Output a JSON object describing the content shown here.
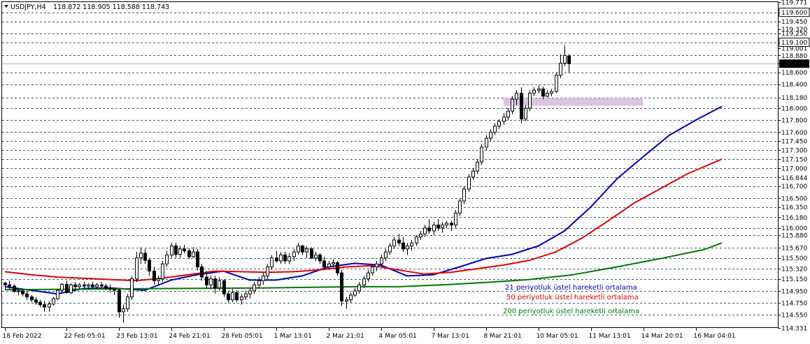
{
  "header": {
    "symbol": "USDJPY,H4",
    "ohlc": "118.872 118.905 118.588 118.743",
    "menu_icon": "triangle-down-icon"
  },
  "chart_data": {
    "type": "candlestick",
    "symbol": "USDJPY",
    "timeframe": "H4",
    "ylim": [
      114.331,
      119.771
    ],
    "y_ticks": [
      "119.771",
      "119.600",
      "119.450",
      "119.320",
      "119.250",
      "119.100",
      "119.001",
      "118.880",
      "118.743",
      "118.600",
      "118.400",
      "118.180",
      "118.000",
      "117.800",
      "117.600",
      "117.450",
      "117.300",
      "117.150",
      "117.000",
      "116.844",
      "116.700",
      "116.500",
      "116.350",
      "116.180",
      "116.000",
      "115.880",
      "115.670",
      "115.500",
      "115.320",
      "115.150",
      "114.950",
      "114.750",
      "114.550",
      "114.331"
    ],
    "y_ticks_boxed": [
      "119.600",
      "119.100"
    ],
    "gridlines": [
      119.6,
      119.45,
      119.25,
      119.1,
      118.88,
      118.6,
      118.4,
      118.18,
      118.0,
      117.8,
      117.6,
      117.45,
      117.3,
      117.15,
      117.0,
      116.844,
      116.7,
      116.5,
      116.35,
      116.18,
      116.0,
      115.88,
      115.67,
      115.5,
      115.32,
      115.15,
      114.95,
      114.75,
      114.55
    ],
    "x_labels": [
      {
        "i": 0,
        "label": "18 Feb 2022"
      },
      {
        "i": 14,
        "label": "22 Feb 05:01"
      },
      {
        "i": 26,
        "label": "23 Feb 13:01"
      },
      {
        "i": 38,
        "label": "24 Feb 21:01"
      },
      {
        "i": 50,
        "label": "28 Feb 05:01"
      },
      {
        "i": 62,
        "label": "1 Mar 13:01"
      },
      {
        "i": 74,
        "label": "2 Mar 21:01"
      },
      {
        "i": 86,
        "label": "4 Mar 05:01"
      },
      {
        "i": 98,
        "label": "7 Mar 13:01"
      },
      {
        "i": 110,
        "label": "8 Mar 21:01"
      },
      {
        "i": 122,
        "label": "10 Mar 05:01"
      },
      {
        "i": 134,
        "label": "11 Mar 13:01"
      },
      {
        "i": 146,
        "label": "14 Mar 20:01"
      },
      {
        "i": 158,
        "label": "16 Mar 04:01"
      }
    ],
    "current_price": 118.743,
    "series": [
      {
        "name": "21 periyotluk üstel hareketli ortalama",
        "color": "#0000b4",
        "points": [
          [
            0,
            115.02
          ],
          [
            6,
            114.96
          ],
          [
            12,
            114.9
          ],
          [
            18,
            114.99
          ],
          [
            24,
            115.0
          ],
          [
            32,
            114.96
          ],
          [
            38,
            115.13
          ],
          [
            44,
            115.22
          ],
          [
            50,
            115.28
          ],
          [
            56,
            115.13
          ],
          [
            62,
            115.13
          ],
          [
            68,
            115.2
          ],
          [
            74,
            115.35
          ],
          [
            80,
            115.41
          ],
          [
            86,
            115.38
          ],
          [
            92,
            115.2
          ],
          [
            98,
            115.22
          ],
          [
            104,
            115.35
          ],
          [
            110,
            115.49
          ],
          [
            116,
            115.56
          ],
          [
            122,
            115.7
          ],
          [
            128,
            115.95
          ],
          [
            134,
            116.35
          ],
          [
            140,
            116.82
          ],
          [
            146,
            117.19
          ],
          [
            152,
            117.55
          ],
          [
            158,
            117.8
          ],
          [
            164,
            118.03
          ]
        ]
      },
      {
        "name": "50 periyotluk üstel hareketli ortalama",
        "color": "#e00000",
        "points": [
          [
            0,
            115.27
          ],
          [
            6,
            115.22
          ],
          [
            12,
            115.18
          ],
          [
            18,
            115.16
          ],
          [
            24,
            115.14
          ],
          [
            30,
            115.12
          ],
          [
            36,
            115.16
          ],
          [
            42,
            115.22
          ],
          [
            48,
            115.28
          ],
          [
            54,
            115.27
          ],
          [
            60,
            115.26
          ],
          [
            66,
            115.27
          ],
          [
            72,
            115.3
          ],
          [
            78,
            115.35
          ],
          [
            84,
            115.37
          ],
          [
            90,
            115.3
          ],
          [
            96,
            115.23
          ],
          [
            102,
            115.26
          ],
          [
            108,
            115.32
          ],
          [
            114,
            115.38
          ],
          [
            120,
            115.46
          ],
          [
            126,
            115.6
          ],
          [
            132,
            115.83
          ],
          [
            138,
            116.12
          ],
          [
            144,
            116.42
          ],
          [
            150,
            116.66
          ],
          [
            156,
            116.9
          ],
          [
            164,
            117.15
          ]
        ]
      },
      {
        "name": "200 periyotluk üstel hareketli ortalama",
        "color": "#007800",
        "points": [
          [
            0,
            114.97
          ],
          [
            20,
            114.98
          ],
          [
            40,
            114.99
          ],
          [
            60,
            115.0
          ],
          [
            80,
            115.02
          ],
          [
            90,
            115.02
          ],
          [
            100,
            115.05
          ],
          [
            110,
            115.09
          ],
          [
            120,
            115.14
          ],
          [
            130,
            115.22
          ],
          [
            140,
            115.35
          ],
          [
            150,
            115.49
          ],
          [
            160,
            115.64
          ],
          [
            164,
            115.75
          ]
        ]
      }
    ],
    "candles": [
      [
        0,
        115.08,
        115.1,
        114.97,
        115.05
      ],
      [
        1,
        115.05,
        115.12,
        114.97,
        115.03
      ],
      [
        2,
        115.03,
        115.06,
        114.92,
        114.94
      ],
      [
        3,
        114.94,
        114.98,
        114.88,
        114.95
      ],
      [
        4,
        114.95,
        114.98,
        114.86,
        114.9
      ],
      [
        5,
        114.9,
        114.95,
        114.8,
        114.85
      ],
      [
        6,
        114.85,
        114.88,
        114.76,
        114.8
      ],
      [
        7,
        114.8,
        114.85,
        114.72,
        114.76
      ],
      [
        8,
        114.76,
        114.8,
        114.68,
        114.72
      ],
      [
        9,
        114.72,
        114.78,
        114.6,
        114.68
      ],
      [
        10,
        114.68,
        114.78,
        114.6,
        114.73
      ],
      [
        11,
        114.73,
        114.85,
        114.7,
        114.82
      ],
      [
        12,
        114.82,
        114.98,
        114.8,
        114.96
      ],
      [
        13,
        114.96,
        115.08,
        114.92,
        115.06
      ],
      [
        14,
        115.06,
        115.12,
        114.9,
        114.92
      ],
      [
        15,
        114.92,
        115.08,
        114.9,
        115.05
      ],
      [
        16,
        115.05,
        115.1,
        114.98,
        115.02
      ],
      [
        17,
        115.02,
        115.08,
        114.98,
        115.05
      ],
      [
        18,
        115.05,
        115.1,
        114.99,
        115.03
      ],
      [
        19,
        115.03,
        115.08,
        114.98,
        115.05
      ],
      [
        20,
        115.05,
        115.1,
        114.99,
        115.02
      ],
      [
        21,
        115.02,
        115.08,
        114.98,
        115.05
      ],
      [
        22,
        115.05,
        115.1,
        115.0,
        115.03
      ],
      [
        23,
        115.03,
        115.07,
        114.96,
        115.0
      ],
      [
        24,
        115.0,
        115.06,
        114.92,
        114.98
      ],
      [
        25,
        114.98,
        115.0,
        114.88,
        114.96
      ],
      [
        26,
        114.96,
        114.98,
        114.5,
        114.6
      ],
      [
        27,
        114.6,
        114.72,
        114.42,
        114.65
      ],
      [
        28,
        114.65,
        114.9,
        114.6,
        114.85
      ],
      [
        29,
        114.85,
        115.2,
        114.8,
        115.15
      ],
      [
        30,
        115.15,
        115.6,
        115.1,
        115.5
      ],
      [
        31,
        115.5,
        115.68,
        115.4,
        115.58
      ],
      [
        32,
        115.58,
        115.65,
        115.4,
        115.46
      ],
      [
        33,
        115.46,
        115.5,
        115.2,
        115.28
      ],
      [
        34,
        115.28,
        115.35,
        115.05,
        115.12
      ],
      [
        35,
        115.12,
        115.2,
        115.05,
        115.15
      ],
      [
        36,
        115.15,
        115.45,
        115.1,
        115.4
      ],
      [
        37,
        115.4,
        115.62,
        115.35,
        115.55
      ],
      [
        38,
        115.55,
        115.75,
        115.5,
        115.7
      ],
      [
        39,
        115.7,
        115.75,
        115.5,
        115.56
      ],
      [
        40,
        115.56,
        115.7,
        115.5,
        115.65
      ],
      [
        41,
        115.65,
        115.72,
        115.58,
        115.62
      ],
      [
        42,
        115.62,
        115.66,
        115.48,
        115.52
      ],
      [
        43,
        115.52,
        115.68,
        115.5,
        115.6
      ],
      [
        44,
        115.6,
        115.65,
        115.3,
        115.35
      ],
      [
        45,
        115.35,
        115.4,
        115.12,
        115.18
      ],
      [
        46,
        115.18,
        115.28,
        115.0,
        115.05
      ],
      [
        47,
        115.05,
        115.2,
        114.98,
        115.15
      ],
      [
        48,
        115.15,
        115.2,
        114.9,
        115.0
      ],
      [
        49,
        115.0,
        115.18,
        114.95,
        115.12
      ],
      [
        50,
        115.12,
        115.15,
        114.85,
        114.9
      ],
      [
        51,
        114.9,
        114.95,
        114.75,
        114.8
      ],
      [
        52,
        114.8,
        114.98,
        114.76,
        114.92
      ],
      [
        53,
        114.92,
        114.96,
        114.76,
        114.8
      ],
      [
        54,
        114.8,
        114.9,
        114.72,
        114.85
      ],
      [
        55,
        114.85,
        114.95,
        114.8,
        114.9
      ],
      [
        56,
        114.9,
        115.0,
        114.82,
        114.95
      ],
      [
        57,
        114.95,
        115.1,
        114.9,
        115.05
      ],
      [
        58,
        115.05,
        115.18,
        115.0,
        115.12
      ],
      [
        59,
        115.12,
        115.25,
        115.05,
        115.2
      ],
      [
        60,
        115.2,
        115.4,
        115.15,
        115.35
      ],
      [
        61,
        115.35,
        115.55,
        115.3,
        115.5
      ],
      [
        62,
        115.5,
        115.62,
        115.42,
        115.45
      ],
      [
        63,
        115.45,
        115.6,
        115.4,
        115.55
      ],
      [
        64,
        115.55,
        115.6,
        115.4,
        115.45
      ],
      [
        65,
        115.45,
        115.58,
        115.4,
        115.52
      ],
      [
        66,
        115.52,
        115.65,
        115.45,
        115.6
      ],
      [
        67,
        115.6,
        115.75,
        115.55,
        115.7
      ],
      [
        68,
        115.7,
        115.72,
        115.55,
        115.6
      ],
      [
        69,
        115.6,
        115.7,
        115.5,
        115.65
      ],
      [
        70,
        115.65,
        115.68,
        115.48,
        115.5
      ],
      [
        71,
        115.5,
        115.6,
        115.45,
        115.55
      ],
      [
        72,
        115.55,
        115.58,
        115.4,
        115.45
      ],
      [
        73,
        115.45,
        115.52,
        115.3,
        115.35
      ],
      [
        74,
        115.35,
        115.45,
        115.3,
        115.4
      ],
      [
        75,
        115.4,
        115.48,
        115.35,
        115.42
      ],
      [
        76,
        115.42,
        115.45,
        115.2,
        115.25
      ],
      [
        77,
        115.25,
        115.3,
        114.7,
        114.78
      ],
      [
        78,
        114.78,
        114.85,
        114.65,
        114.8
      ],
      [
        79,
        114.8,
        114.92,
        114.75,
        114.88
      ],
      [
        80,
        114.88,
        115.0,
        114.85,
        114.95
      ],
      [
        81,
        114.95,
        115.1,
        114.9,
        115.05
      ],
      [
        82,
        115.05,
        115.2,
        115.0,
        115.15
      ],
      [
        83,
        115.15,
        115.3,
        115.1,
        115.25
      ],
      [
        84,
        115.25,
        115.4,
        115.2,
        115.35
      ],
      [
        85,
        115.35,
        115.45,
        115.28,
        115.4
      ],
      [
        86,
        115.4,
        115.55,
        115.35,
        115.5
      ],
      [
        87,
        115.5,
        115.65,
        115.45,
        115.6
      ],
      [
        88,
        115.6,
        115.75,
        115.55,
        115.7
      ],
      [
        89,
        115.7,
        115.85,
        115.65,
        115.8
      ],
      [
        90,
        115.8,
        115.9,
        115.7,
        115.75
      ],
      [
        91,
        115.75,
        115.85,
        115.6,
        115.65
      ],
      [
        92,
        115.65,
        115.75,
        115.55,
        115.7
      ],
      [
        93,
        115.7,
        115.8,
        115.62,
        115.75
      ],
      [
        94,
        115.75,
        115.88,
        115.7,
        115.85
      ],
      [
        95,
        115.85,
        115.95,
        115.8,
        115.9
      ],
      [
        96,
        115.9,
        116.05,
        115.85,
        116.0
      ],
      [
        97,
        116.0,
        116.15,
        115.9,
        115.95
      ],
      [
        98,
        115.95,
        116.1,
        115.88,
        116.05
      ],
      [
        99,
        116.05,
        116.15,
        115.95,
        116.0
      ],
      [
        100,
        116.0,
        116.1,
        115.92,
        116.05
      ],
      [
        101,
        116.05,
        116.12,
        116.0,
        116.08
      ],
      [
        102,
        116.08,
        116.12,
        115.95,
        116.05
      ],
      [
        103,
        116.05,
        116.3,
        116.0,
        116.25
      ],
      [
        104,
        116.25,
        116.5,
        116.2,
        116.45
      ],
      [
        105,
        116.45,
        116.7,
        116.4,
        116.65
      ],
      [
        106,
        116.65,
        116.9,
        116.6,
        116.85
      ],
      [
        107,
        116.85,
        117.0,
        116.8,
        116.95
      ],
      [
        108,
        116.95,
        117.15,
        116.9,
        117.1
      ],
      [
        109,
        117.1,
        117.4,
        117.05,
        117.35
      ],
      [
        110,
        117.35,
        117.55,
        117.3,
        117.5
      ],
      [
        111,
        117.5,
        117.65,
        117.45,
        117.6
      ],
      [
        112,
        117.6,
        117.75,
        117.55,
        117.7
      ],
      [
        113,
        117.7,
        117.82,
        117.65,
        117.78
      ],
      [
        114,
        117.78,
        117.92,
        117.72,
        117.85
      ],
      [
        115,
        117.85,
        118.0,
        117.8,
        117.95
      ],
      [
        116,
        117.95,
        118.2,
        117.9,
        118.15
      ],
      [
        117,
        118.15,
        118.3,
        118.05,
        118.25
      ],
      [
        118,
        118.25,
        118.35,
        117.75,
        117.82
      ],
      [
        119,
        117.82,
        118.05,
        117.78,
        118.0
      ],
      [
        120,
        118.0,
        118.3,
        117.95,
        118.25
      ],
      [
        121,
        118.25,
        118.35,
        118.2,
        118.3
      ],
      [
        122,
        118.3,
        118.38,
        118.25,
        118.32
      ],
      [
        123,
        118.32,
        118.36,
        118.15,
        118.2
      ],
      [
        124,
        118.2,
        118.3,
        118.18,
        118.25
      ],
      [
        125,
        118.25,
        118.32,
        118.2,
        118.28
      ],
      [
        126,
        118.28,
        118.6,
        118.25,
        118.55
      ],
      [
        127,
        118.55,
        118.9,
        118.5,
        118.75
      ],
      [
        128,
        118.75,
        119.05,
        118.7,
        118.88
      ],
      [
        129,
        118.872,
        118.905,
        118.588,
        118.743
      ]
    ],
    "highlight_zone": {
      "y0": 118.04,
      "y1": 118.17,
      "i0": 114,
      "i1": 146
    },
    "legend_placement": "bottom-right"
  }
}
